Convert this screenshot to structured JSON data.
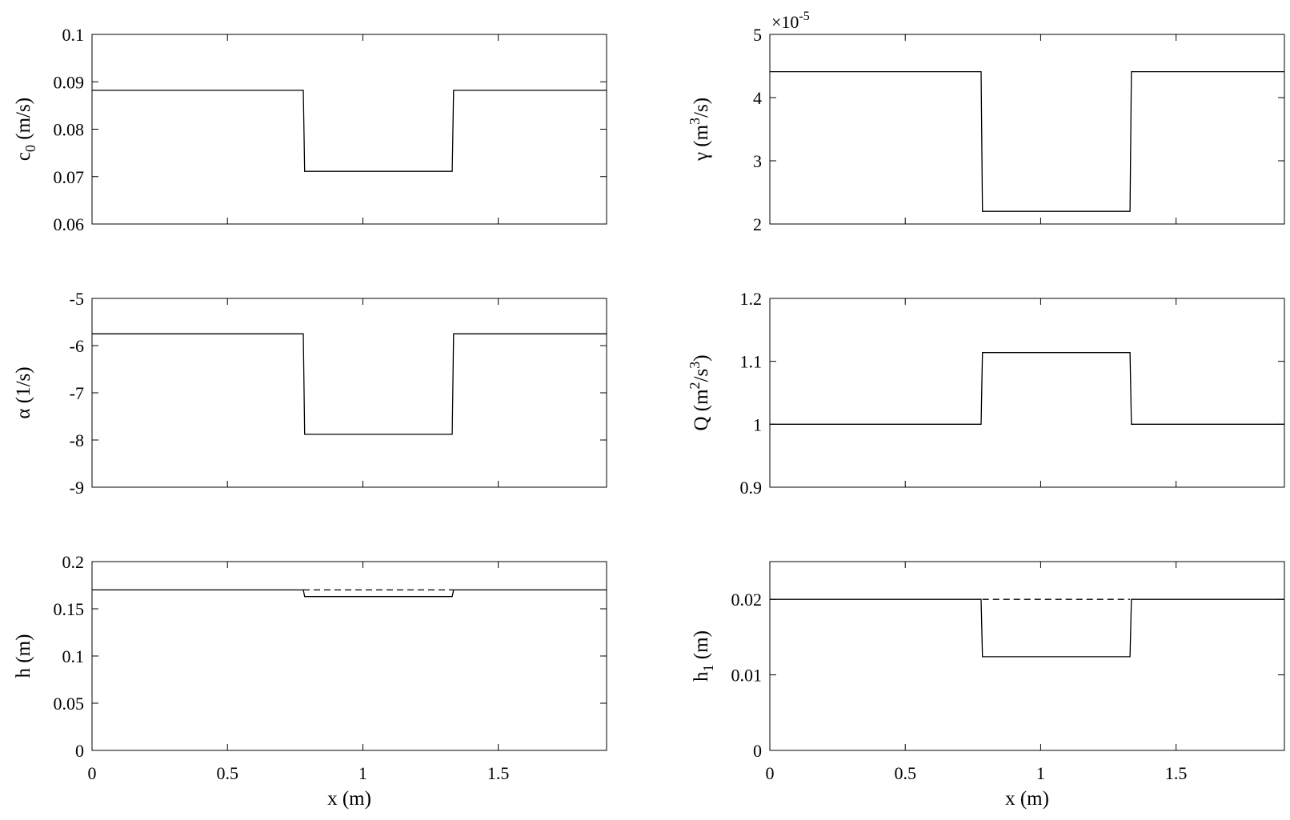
{
  "chart_data": [
    {
      "type": "line",
      "xlabel": "",
      "ylabel": "c0 (m/s)",
      "xlim": [
        0,
        1.9
      ],
      "ylim": [
        0.06,
        0.1
      ],
      "xticks": [
        0,
        0.5,
        1,
        1.5
      ],
      "xtick_labels": [],
      "yticks": [
        0.06,
        0.07,
        0.08,
        0.09,
        0.1
      ],
      "ytick_labels": [
        "0.06",
        "0.07",
        "0.08",
        "0.09",
        "0.1"
      ],
      "series": [
        {
          "style": "solid",
          "x": [
            0,
            0.78,
            0.785,
            1.33,
            1.335,
            1.9
          ],
          "y": [
            0.0882,
            0.0882,
            0.0711,
            0.0711,
            0.0882,
            0.0882
          ]
        }
      ]
    },
    {
      "type": "line",
      "xlabel": "",
      "ylabel": "γ (m3/s)",
      "exponent_label": "×10",
      "exponent_power": "-5",
      "xlim": [
        0,
        1.9
      ],
      "ylim": [
        2,
        5
      ],
      "xticks": [
        0,
        0.5,
        1,
        1.5
      ],
      "xtick_labels": [],
      "yticks": [
        2,
        3,
        4,
        5
      ],
      "ytick_labels": [
        "2",
        "3",
        "4",
        "5"
      ],
      "series": [
        {
          "style": "solid",
          "x": [
            0,
            0.78,
            0.785,
            1.33,
            1.335,
            1.9
          ],
          "y": [
            4.41,
            4.41,
            2.2,
            2.2,
            4.41,
            4.41
          ]
        }
      ]
    },
    {
      "type": "line",
      "xlabel": "",
      "ylabel": "α (1/s)",
      "xlim": [
        0,
        1.9
      ],
      "ylim": [
        -9,
        -5
      ],
      "xticks": [
        0,
        0.5,
        1,
        1.5
      ],
      "xtick_labels": [],
      "yticks": [
        -9,
        -8,
        -7,
        -6,
        -5
      ],
      "ytick_labels": [
        "-9",
        "-8",
        "-7",
        "-6",
        "-5"
      ],
      "series": [
        {
          "style": "solid",
          "x": [
            0,
            0.78,
            0.785,
            1.33,
            1.335,
            1.9
          ],
          "y": [
            -5.75,
            -5.75,
            -7.88,
            -7.88,
            -5.75,
            -5.75
          ]
        }
      ]
    },
    {
      "type": "line",
      "xlabel": "",
      "ylabel": "Q (m2/s3)",
      "xlim": [
        0,
        1.9
      ],
      "ylim": [
        0.9,
        1.2
      ],
      "xticks": [
        0,
        0.5,
        1,
        1.5
      ],
      "xtick_labels": [],
      "yticks": [
        0.9,
        1,
        1.1,
        1.2
      ],
      "ytick_labels": [
        "0.9",
        "1",
        "1.1",
        "1.2"
      ],
      "series": [
        {
          "style": "solid",
          "x": [
            0,
            0.78,
            0.785,
            1.33,
            1.335,
            1.9
          ],
          "y": [
            1.0,
            1.0,
            1.114,
            1.114,
            1.0,
            1.0
          ]
        }
      ]
    },
    {
      "type": "line",
      "xlabel": "x (m)",
      "ylabel": "h (m)",
      "xlim": [
        0,
        1.9
      ],
      "ylim": [
        0,
        0.2
      ],
      "xticks": [
        0,
        0.5,
        1,
        1.5
      ],
      "xtick_labels": [
        "0",
        "0.5",
        "1",
        "1.5"
      ],
      "yticks": [
        0,
        0.05,
        0.1,
        0.15,
        0.2
      ],
      "ytick_labels": [
        "0",
        "0.05",
        "0.1",
        "0.15",
        "0.2"
      ],
      "series": [
        {
          "style": "solid",
          "x": [
            0,
            0.78,
            0.785,
            1.33,
            1.335,
            1.9
          ],
          "y": [
            0.17,
            0.17,
            0.163,
            0.163,
            0.17,
            0.17
          ]
        },
        {
          "style": "dashed",
          "x": [
            0.78,
            1.335
          ],
          "y": [
            0.17,
            0.17
          ]
        }
      ]
    },
    {
      "type": "line",
      "xlabel": "x (m)",
      "ylabel": "h1 (m)",
      "xlim": [
        0,
        1.9
      ],
      "ylim": [
        0,
        0.025
      ],
      "xticks": [
        0,
        0.5,
        1,
        1.5
      ],
      "xtick_labels": [
        "0",
        "0.5",
        "1",
        "1.5"
      ],
      "yticks": [
        0,
        0.01,
        0.02
      ],
      "ytick_labels": [
        "0",
        "0.01",
        "0.02"
      ],
      "series": [
        {
          "style": "solid",
          "x": [
            0,
            0.78,
            0.785,
            1.33,
            1.335,
            1.9
          ],
          "y": [
            0.02,
            0.02,
            0.0124,
            0.0124,
            0.02,
            0.02
          ]
        },
        {
          "style": "dashed",
          "x": [
            0.785,
            1.33
          ],
          "y": [
            0.02,
            0.02
          ]
        }
      ]
    }
  ]
}
